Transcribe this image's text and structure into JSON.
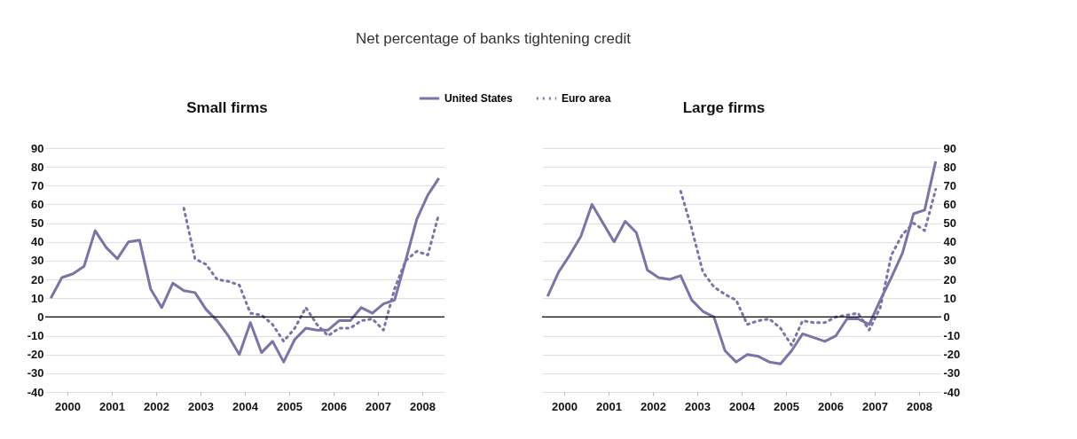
{
  "chart_data": [
    {
      "type": "line",
      "title": "Small firms",
      "annotations": [
        "Net percentage of banks tightening credit"
      ],
      "x": [
        2000.125,
        2000.375,
        2000.625,
        2000.875,
        2001.125,
        2001.375,
        2001.625,
        2001.875,
        2002.125,
        2002.375,
        2002.625,
        2002.875,
        2003.125,
        2003.375,
        2003.625,
        2003.875,
        2004.125,
        2004.375,
        2004.625,
        2004.875,
        2005.125,
        2005.375,
        2005.625,
        2005.875,
        2006.125,
        2006.375,
        2006.625,
        2006.875,
        2007.125,
        2007.375,
        2007.625,
        2007.875,
        2008.125,
        2008.375,
        2008.625,
        2008.875
      ],
      "series": [
        {
          "name": "United States",
          "color": "#7e72a6",
          "line_style": "solid",
          "values": [
            10,
            21,
            23,
            27,
            46,
            37,
            31,
            40,
            41,
            15,
            5,
            18,
            14,
            13,
            4,
            -2,
            -10,
            -20,
            -3,
            -19,
            -13,
            -24,
            -12,
            -6,
            -7,
            -7,
            -2,
            -2,
            5,
            2,
            7,
            9,
            30,
            52,
            65,
            74
          ]
        },
        {
          "name": "Euro area",
          "color": "#7e72a6",
          "line_style": "dotted",
          "values": [
            null,
            null,
            null,
            null,
            null,
            null,
            null,
            null,
            null,
            null,
            null,
            null,
            58,
            31,
            28,
            20,
            19,
            17,
            2,
            1,
            -4,
            -13,
            -6,
            5,
            -4,
            -10,
            -6,
            -6,
            -2,
            -1,
            -7,
            15,
            30,
            35,
            33,
            55
          ]
        }
      ],
      "xlim": [
        2000,
        2009
      ],
      "xticks": [
        {
          "value": 2000.5,
          "label": "2000"
        },
        {
          "value": 2001.5,
          "label": "2001"
        },
        {
          "value": 2002.5,
          "label": "2002"
        },
        {
          "value": 2003.5,
          "label": "2003"
        },
        {
          "value": 2004.5,
          "label": "2004"
        },
        {
          "value": 2005.5,
          "label": "2005"
        },
        {
          "value": 2006.5,
          "label": "2006"
        },
        {
          "value": 2007.5,
          "label": "2007"
        },
        {
          "value": 2008.5,
          "label": "2008"
        }
      ],
      "ylim": [
        -40,
        90
      ],
      "yticks": [
        -40,
        -30,
        -20,
        -10,
        0,
        10,
        20,
        30,
        40,
        50,
        60,
        70,
        80,
        90
      ],
      "ref_lines": [
        {
          "axis": "y",
          "value": 0,
          "color": "#000000"
        }
      ],
      "grid": "y",
      "legend": "top"
    },
    {
      "type": "line",
      "title": "Large firms",
      "x": [
        2000.125,
        2000.375,
        2000.625,
        2000.875,
        2001.125,
        2001.375,
        2001.625,
        2001.875,
        2002.125,
        2002.375,
        2002.625,
        2002.875,
        2003.125,
        2003.375,
        2003.625,
        2003.875,
        2004.125,
        2004.375,
        2004.625,
        2004.875,
        2005.125,
        2005.375,
        2005.625,
        2005.875,
        2006.125,
        2006.375,
        2006.625,
        2006.875,
        2007.125,
        2007.375,
        2007.625,
        2007.875,
        2008.125,
        2008.375,
        2008.625,
        2008.875
      ],
      "series": [
        {
          "name": "United States",
          "color": "#7e72a6",
          "line_style": "solid",
          "values": [
            11,
            24,
            33,
            43,
            60,
            50,
            40,
            51,
            45,
            25,
            21,
            20,
            22,
            9,
            3,
            0,
            -18,
            -24,
            -20,
            -21,
            -24,
            -25,
            -18,
            -9,
            -11,
            -13,
            -10,
            -1,
            -1,
            -4,
            9,
            21,
            34,
            55,
            57,
            83
          ]
        },
        {
          "name": "Euro area",
          "color": "#7e72a6",
          "line_style": "dotted",
          "values": [
            null,
            null,
            null,
            null,
            null,
            null,
            null,
            null,
            null,
            null,
            null,
            null,
            67,
            47,
            24,
            16,
            12,
            9,
            -4,
            -2,
            -1,
            -6,
            -15,
            -2,
            -3,
            -3,
            0,
            1,
            2,
            -7,
            5,
            33,
            44,
            50,
            46,
            68
          ]
        }
      ],
      "xlim": [
        2000,
        2009
      ],
      "xticks": [
        {
          "value": 2000.5,
          "label": "2000"
        },
        {
          "value": 2001.5,
          "label": "2001"
        },
        {
          "value": 2002.5,
          "label": "2002"
        },
        {
          "value": 2003.5,
          "label": "2003"
        },
        {
          "value": 2004.5,
          "label": "2004"
        },
        {
          "value": 2005.5,
          "label": "2005"
        },
        {
          "value": 2006.5,
          "label": "2006"
        },
        {
          "value": 2007.5,
          "label": "2007"
        },
        {
          "value": 2008.5,
          "label": "2008"
        }
      ],
      "ylim": [
        -40,
        90
      ],
      "yticks": [
        -40,
        -30,
        -20,
        -10,
        0,
        10,
        20,
        30,
        40,
        50,
        60,
        70,
        80,
        90
      ],
      "ref_lines": [
        {
          "axis": "y",
          "value": 0,
          "color": "#000000"
        }
      ],
      "grid": "y",
      "legend": "top"
    }
  ]
}
